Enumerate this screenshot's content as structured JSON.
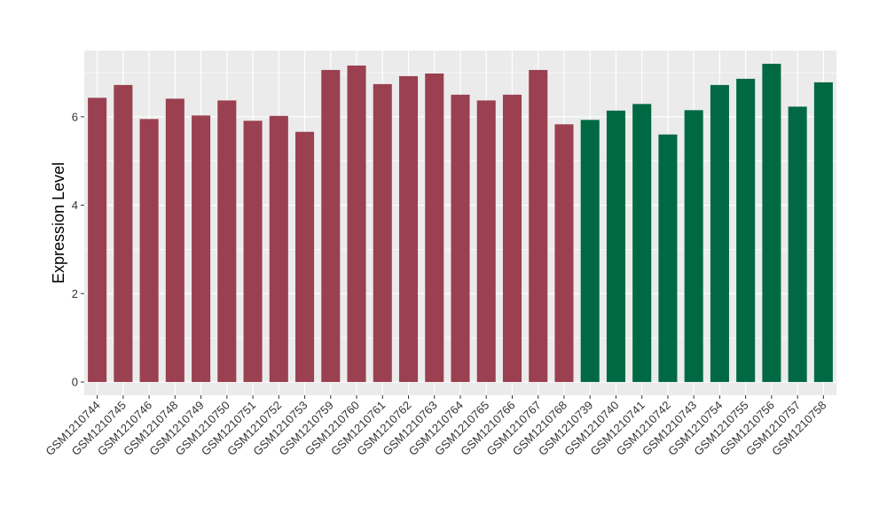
{
  "chart_data": {
    "type": "bar",
    "title": "",
    "xlabel": "",
    "ylabel": "Expression Level",
    "ylim": [
      -0.3,
      7.5
    ],
    "yticks": [
      0,
      2,
      4,
      6
    ],
    "grid": true,
    "legend": "none",
    "colors": {
      "group_a": "#9b4050",
      "group_b": "#006944",
      "panel": "#ebebeb",
      "grid": "#ffffff"
    },
    "categories": [
      "GSM1210744",
      "GSM1210745",
      "GSM1210746",
      "GSM1210748",
      "GSM1210749",
      "GSM1210750",
      "GSM1210751",
      "GSM1210752",
      "GSM1210753",
      "GSM1210759",
      "GSM1210760",
      "GSM1210761",
      "GSM1210762",
      "GSM1210763",
      "GSM1210764",
      "GSM1210765",
      "GSM1210766",
      "GSM1210767",
      "GSM1210768",
      "GSM1210739",
      "GSM1210740",
      "GSM1210741",
      "GSM1210742",
      "GSM1210743",
      "GSM1210754",
      "GSM1210755",
      "GSM1210756",
      "GSM1210757",
      "GSM1210758"
    ],
    "values": [
      6.43,
      6.72,
      5.95,
      6.41,
      6.03,
      6.37,
      5.91,
      6.02,
      5.66,
      7.06,
      7.16,
      6.74,
      6.92,
      6.98,
      6.5,
      6.37,
      6.5,
      7.06,
      5.83,
      5.93,
      6.14,
      6.29,
      5.6,
      6.15,
      6.72,
      6.86,
      7.2,
      6.23,
      6.78
    ],
    "groups": [
      "a",
      "a",
      "a",
      "a",
      "a",
      "a",
      "a",
      "a",
      "a",
      "a",
      "a",
      "a",
      "a",
      "a",
      "a",
      "a",
      "a",
      "a",
      "a",
      "b",
      "b",
      "b",
      "b",
      "b",
      "b",
      "b",
      "b",
      "b",
      "b"
    ]
  }
}
